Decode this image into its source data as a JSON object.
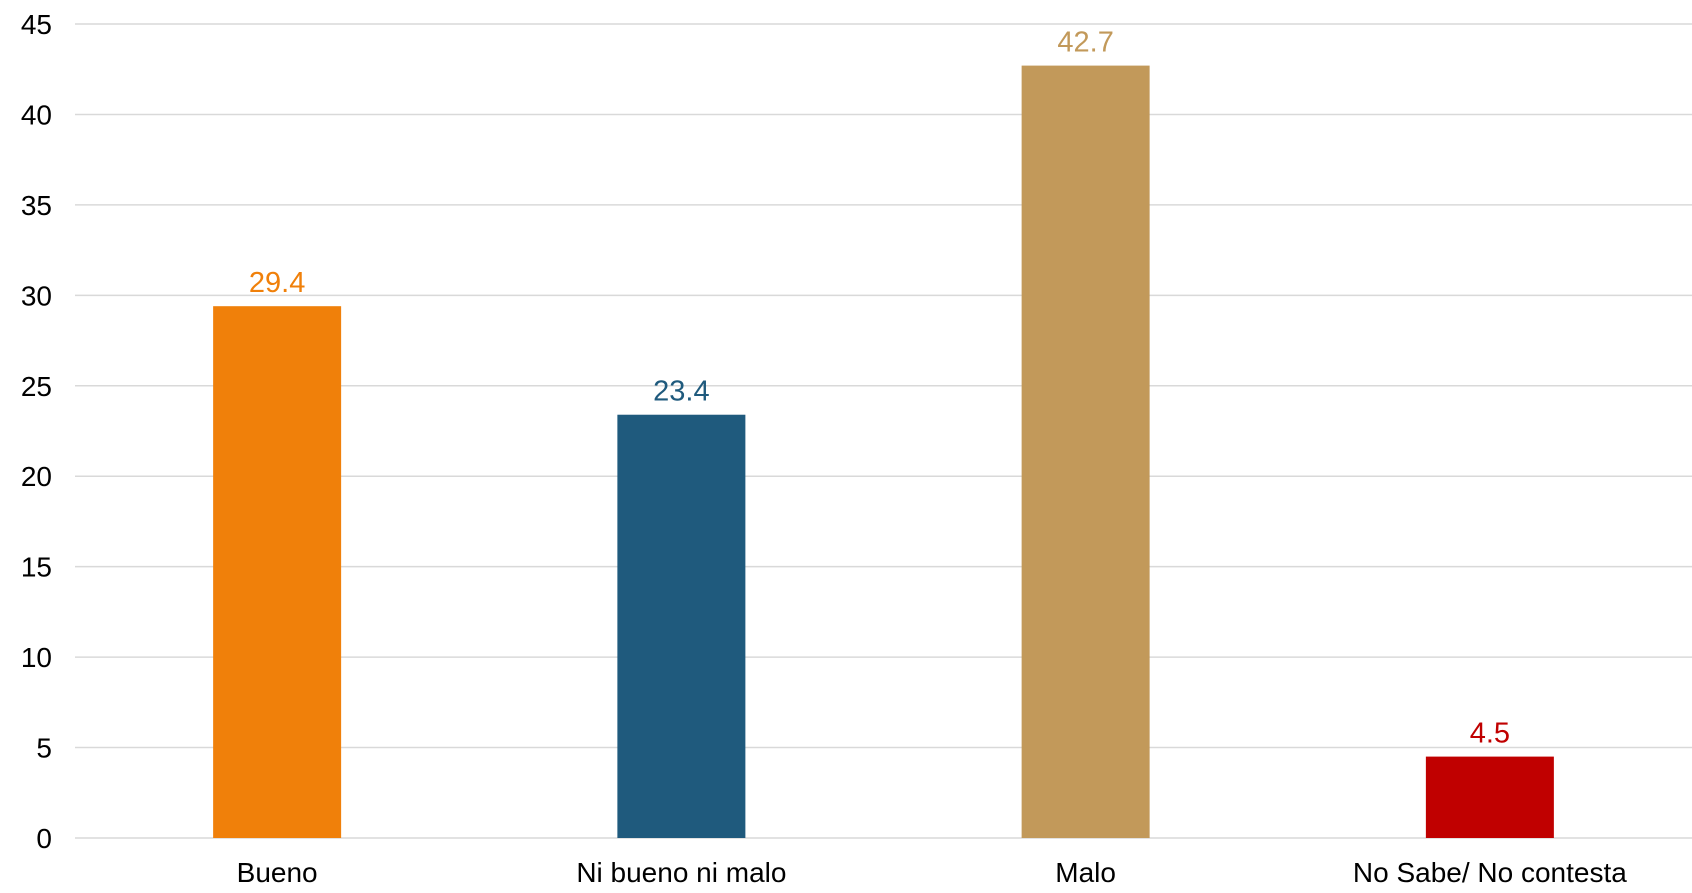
{
  "chart_data": {
    "type": "bar",
    "categories": [
      "Bueno",
      "Ni bueno ni malo",
      "Malo",
      "No Sabe/ No contesta"
    ],
    "values": [
      29.4,
      23.4,
      42.7,
      4.5
    ],
    "value_labels": [
      "29.4",
      "23.4",
      "42.7",
      "4.5"
    ],
    "colors": [
      "#f0800a",
      "#1f5a7d",
      "#c2995a",
      "#c00000"
    ],
    "ylim": [
      0,
      45
    ],
    "yticks": [
      0,
      5,
      10,
      15,
      20,
      25,
      30,
      35,
      40,
      45
    ],
    "ytick_labels": [
      "0",
      "5",
      "10",
      "15",
      "20",
      "25",
      "30",
      "35",
      "40",
      "45"
    ],
    "grid": true,
    "legend": "none",
    "title": "",
    "xlabel": "",
    "ylabel": ""
  }
}
